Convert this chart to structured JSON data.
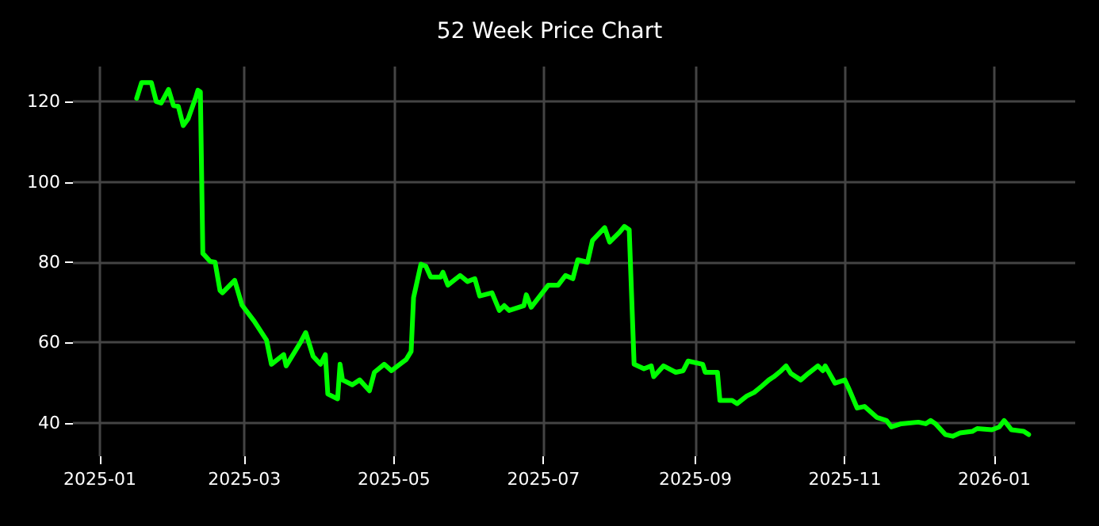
{
  "chart_data": {
    "type": "line",
    "title": "52 Week Price Chart",
    "x": [
      "2025-01-16",
      "2025-01-18",
      "2025-01-22",
      "2025-01-24",
      "2025-01-26",
      "2025-01-29",
      "2025-01-31",
      "2025-02-02",
      "2025-02-04",
      "2025-02-06",
      "2025-02-09",
      "2025-02-10",
      "2025-02-11",
      "2025-02-12",
      "2025-02-15",
      "2025-02-17",
      "2025-02-19",
      "2025-02-20",
      "2025-02-25",
      "2025-02-28",
      "2025-03-05",
      "2025-03-10",
      "2025-03-12",
      "2025-03-17",
      "2025-03-18",
      "2025-03-24",
      "2025-03-26",
      "2025-03-29",
      "2025-04-01",
      "2025-04-03",
      "2025-04-04",
      "2025-04-08",
      "2025-04-09",
      "2025-04-10",
      "2025-04-14",
      "2025-04-17",
      "2025-04-21",
      "2025-04-23",
      "2025-04-27",
      "2025-04-30",
      "2025-05-06",
      "2025-05-08",
      "2025-05-09",
      "2025-05-12",
      "2025-05-14",
      "2025-05-16",
      "2025-05-20",
      "2025-05-21",
      "2025-05-23",
      "2025-05-28",
      "2025-05-31",
      "2025-06-03",
      "2025-06-05",
      "2025-06-10",
      "2025-06-13",
      "2025-06-15",
      "2025-06-17",
      "2025-06-23",
      "2025-06-24",
      "2025-06-26",
      "2025-07-03",
      "2025-07-07",
      "2025-07-10",
      "2025-07-13",
      "2025-07-15",
      "2025-07-19",
      "2025-07-21",
      "2025-07-26",
      "2025-07-28",
      "2025-08-01",
      "2025-08-03",
      "2025-08-05",
      "2025-08-07",
      "2025-08-11",
      "2025-08-14",
      "2025-08-15",
      "2025-08-19",
      "2025-08-24",
      "2025-08-27",
      "2025-08-29",
      "2025-09-04",
      "2025-09-05",
      "2025-09-10",
      "2025-09-11",
      "2025-09-16",
      "2025-09-18",
      "2025-09-22",
      "2025-09-25",
      "2025-09-28",
      "2025-10-01",
      "2025-10-03",
      "2025-10-06",
      "2025-10-08",
      "2025-10-10",
      "2025-10-14",
      "2025-10-17",
      "2025-10-21",
      "2025-10-23",
      "2025-10-24",
      "2025-10-28",
      "2025-11-01",
      "2025-11-03",
      "2025-11-06",
      "2025-11-09",
      "2025-11-14",
      "2025-11-18",
      "2025-11-20",
      "2025-11-24",
      "2025-12-01",
      "2025-12-04",
      "2025-12-06",
      "2025-12-08",
      "2025-12-12",
      "2025-12-15",
      "2025-12-18",
      "2025-12-23",
      "2025-12-25",
      "2025-12-31",
      "2026-01-03",
      "2026-01-05",
      "2026-01-08",
      "2026-01-13",
      "2026-01-15"
    ],
    "series": [
      {
        "color": "#00ff00",
        "values": [
          120.8,
          124.7,
          124.7,
          120,
          119.6,
          123,
          119,
          118.8,
          114,
          115.7,
          120.8,
          122.8,
          122.4,
          82.2,
          80.2,
          80,
          73,
          72.4,
          75.5,
          69.3,
          65.3,
          60.6,
          54.6,
          57,
          54.2,
          60.2,
          62.5,
          56.6,
          54.6,
          57,
          47.2,
          46,
          54.6,
          50.7,
          49.5,
          50.7,
          48,
          52.6,
          54.6,
          53,
          55.8,
          57.8,
          71.2,
          79.5,
          79,
          76.3,
          76.3,
          77.5,
          74.3,
          76.7,
          75.2,
          75.9,
          71.6,
          72.4,
          68,
          69.2,
          68,
          69.2,
          71.9,
          68.8,
          74.3,
          74.3,
          76.7,
          75.9,
          80.6,
          80,
          85.4,
          88.6,
          85,
          87.4,
          88.9,
          88.1,
          54.6,
          53.5,
          54.2,
          51.5,
          54.2,
          52.6,
          53,
          55.4,
          54.6,
          52.6,
          52.6,
          45.6,
          45.6,
          44.8,
          46.7,
          47.6,
          49.1,
          50.7,
          51.5,
          53,
          54.2,
          52.3,
          50.7,
          52.3,
          54.2,
          53,
          54.2,
          49.9,
          50.7,
          48,
          43.7,
          44.1,
          41.4,
          40.6,
          39,
          39.8,
          40.2,
          39.8,
          40.6,
          39.8,
          37.1,
          36.7,
          37.5,
          37.9,
          38.6,
          38.3,
          39,
          40.6,
          38.3,
          37.9,
          37.1
        ]
      }
    ],
    "xlim": [
      "2024-12-21",
      "2026-02-03"
    ],
    "xticks": [
      "2025-01",
      "2025-03",
      "2025-05",
      "2025-07",
      "2025-09",
      "2025-11",
      "2026-01"
    ],
    "ylim": [
      31.7,
      128.7
    ],
    "yticks": [
      40,
      60,
      80,
      100,
      120
    ],
    "grid": true,
    "marker": "none",
    "line_style": "solid"
  }
}
